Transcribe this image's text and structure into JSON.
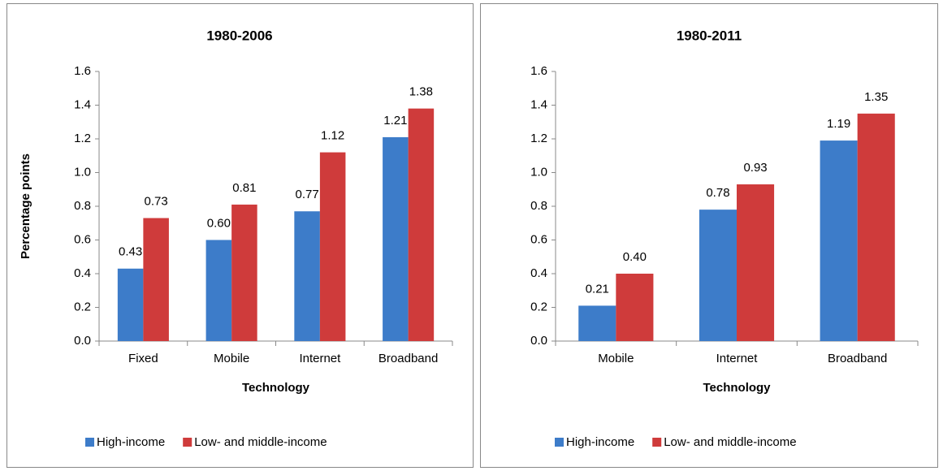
{
  "chart_data": [
    {
      "type": "bar",
      "title": "1980-2006",
      "x_label": "Technology",
      "y_label": "Percentage points",
      "categories": [
        "Fixed",
        "Mobile",
        "Internet",
        "Broadband"
      ],
      "series": [
        {
          "name": "High-income",
          "color": "#3d7cc9",
          "values": [
            0.43,
            0.6,
            0.77,
            1.21
          ],
          "value_labels": [
            "0.43",
            "0.60",
            "0.77",
            "1.21"
          ]
        },
        {
          "name": "Low- and middle-income",
          "color": "#cf3b3b",
          "values": [
            0.73,
            0.81,
            1.12,
            1.38
          ],
          "value_labels": [
            "0.73",
            "0.81",
            "1.12",
            "1.38"
          ]
        }
      ],
      "ylim": [
        0,
        1.6
      ],
      "yticks": [
        {
          "value": 0,
          "label": "0.0"
        },
        0.2,
        0.4,
        0.6,
        0.8,
        {
          "value": 1,
          "label": "1.0"
        },
        1.2,
        1.4,
        1.6
      ],
      "legend": "bottom"
    },
    {
      "type": "bar",
      "title": "1980-2011",
      "x_label": "Technology",
      "categories": [
        "Mobile",
        "Internet",
        "Broadband"
      ],
      "series": [
        {
          "name": "High-income",
          "color": "#3d7cc9",
          "values": [
            0.21,
            0.78,
            1.19
          ],
          "value_labels": [
            "0.21",
            "0.78",
            "1.19"
          ]
        },
        {
          "name": "Low- and middle-income",
          "color": "#cf3b3b",
          "values": [
            0.4,
            0.93,
            1.35
          ],
          "value_labels": [
            "0.40",
            "0.93",
            "1.35"
          ]
        }
      ],
      "ylim": [
        0,
        1.6
      ],
      "yticks": [
        {
          "value": 0,
          "label": "0.0"
        },
        0.2,
        0.4,
        0.6,
        0.8,
        {
          "value": 1,
          "label": "1.0"
        },
        1.2,
        1.4,
        1.6
      ],
      "legend": "bottom"
    }
  ]
}
